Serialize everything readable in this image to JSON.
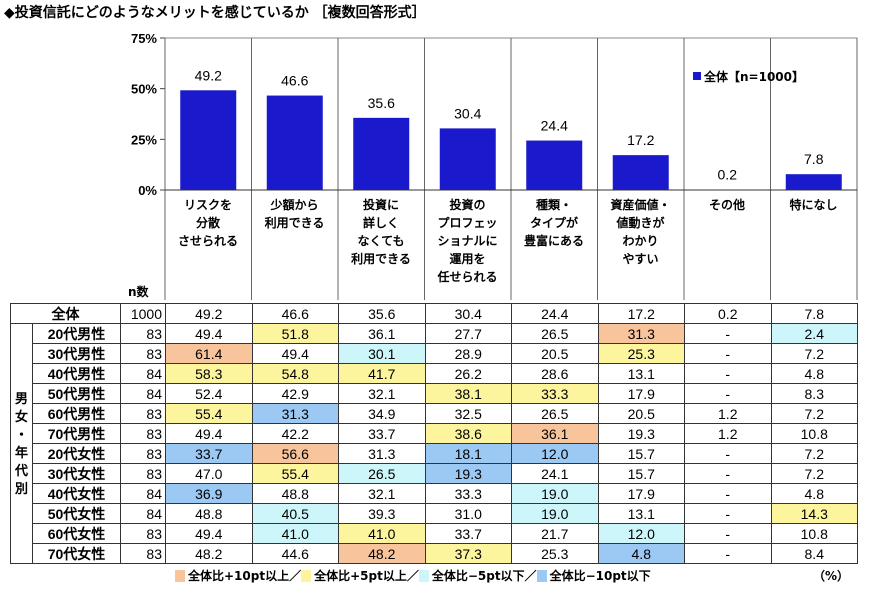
{
  "title": "◆投資信託にどのようなメリットを感じているか ［複数回答形式］",
  "colors": {
    "bar": "#1a1acc",
    "o": "#f8c49c",
    "y": "#fdf59e",
    "c": "#cdf6fa",
    "b": "#9cc8f4"
  },
  "chart_data": {
    "type": "bar",
    "title": "投資信託にどのようなメリットを感じているか",
    "categories": [
      "リスクを\n分散\nさせられる",
      "少額から\n利用できる",
      "投資に\n詳しく\nなくても\n利用できる",
      "投資の\nプロフェッ\nショナルに\n運用を\n任せられる",
      "種類・\nタイプが\n豊富にある",
      "資産価値・\n値動きが\nわかり\nやすい",
      "その他",
      "特になし"
    ],
    "values": [
      49.2,
      46.6,
      35.6,
      30.4,
      24.4,
      17.2,
      0.2,
      7.8
    ],
    "value_labels": [
      "49.2",
      "46.6",
      "35.6",
      "30.4",
      "24.4",
      "17.2",
      "0.2",
      "7.8"
    ],
    "yticks": [
      "75%",
      "50%",
      "25%",
      "0%"
    ],
    "ytick_values": [
      75,
      50,
      25,
      0
    ],
    "ylim": [
      0,
      75
    ],
    "legend": "全体【n=1000】",
    "legend_position": "top-right"
  },
  "table": {
    "n_header": "n数",
    "group_label": "男\n女\n・\n年\n代\n別",
    "total": {
      "label": "全体",
      "n": "1000",
      "values": [
        "49.2",
        "46.6",
        "35.6",
        "30.4",
        "24.4",
        "17.2",
        "0.2",
        "7.8"
      ]
    },
    "rows": [
      {
        "label": "20代男性",
        "n": "83",
        "values": [
          "49.4",
          "51.8",
          "36.1",
          "27.7",
          "26.5",
          "31.3",
          "-",
          "2.4"
        ],
        "hl": [
          "",
          "y",
          "",
          "",
          "",
          "o",
          "",
          "c"
        ]
      },
      {
        "label": "30代男性",
        "n": "83",
        "values": [
          "61.4",
          "49.4",
          "30.1",
          "28.9",
          "20.5",
          "25.3",
          "-",
          "7.2"
        ],
        "hl": [
          "o",
          "",
          "c",
          "",
          "",
          "y",
          "",
          ""
        ]
      },
      {
        "label": "40代男性",
        "n": "84",
        "values": [
          "58.3",
          "54.8",
          "41.7",
          "26.2",
          "28.6",
          "13.1",
          "-",
          "4.8"
        ],
        "hl": [
          "y",
          "y",
          "y",
          "",
          "",
          "",
          "",
          ""
        ]
      },
      {
        "label": "50代男性",
        "n": "84",
        "values": [
          "52.4",
          "42.9",
          "32.1",
          "38.1",
          "33.3",
          "17.9",
          "-",
          "8.3"
        ],
        "hl": [
          "",
          "",
          "",
          "y",
          "y",
          "",
          "",
          ""
        ]
      },
      {
        "label": "60代男性",
        "n": "83",
        "values": [
          "55.4",
          "31.3",
          "34.9",
          "32.5",
          "26.5",
          "20.5",
          "1.2",
          "7.2"
        ],
        "hl": [
          "y",
          "b",
          "",
          "",
          "",
          "",
          "",
          ""
        ]
      },
      {
        "label": "70代男性",
        "n": "83",
        "values": [
          "49.4",
          "42.2",
          "33.7",
          "38.6",
          "36.1",
          "19.3",
          "1.2",
          "10.8"
        ],
        "hl": [
          "",
          "",
          "",
          "y",
          "o",
          "",
          "",
          ""
        ]
      },
      {
        "label": "20代女性",
        "n": "83",
        "values": [
          "33.7",
          "56.6",
          "31.3",
          "18.1",
          "12.0",
          "15.7",
          "-",
          "7.2"
        ],
        "hl": [
          "b",
          "o",
          "",
          "b",
          "b",
          "",
          "",
          ""
        ]
      },
      {
        "label": "30代女性",
        "n": "83",
        "values": [
          "47.0",
          "55.4",
          "26.5",
          "19.3",
          "24.1",
          "15.7",
          "-",
          "7.2"
        ],
        "hl": [
          "",
          "y",
          "c",
          "b",
          "",
          "",
          "",
          ""
        ]
      },
      {
        "label": "40代女性",
        "n": "84",
        "values": [
          "36.9",
          "48.8",
          "32.1",
          "33.3",
          "19.0",
          "17.9",
          "-",
          "4.8"
        ],
        "hl": [
          "b",
          "",
          "",
          "",
          "c",
          "",
          "",
          ""
        ]
      },
      {
        "label": "50代女性",
        "n": "84",
        "values": [
          "48.8",
          "40.5",
          "39.3",
          "31.0",
          "19.0",
          "13.1",
          "-",
          "14.3"
        ],
        "hl": [
          "",
          "c",
          "",
          "",
          "c",
          "",
          "",
          "y"
        ]
      },
      {
        "label": "60代女性",
        "n": "83",
        "values": [
          "49.4",
          "41.0",
          "41.0",
          "33.7",
          "21.7",
          "12.0",
          "-",
          "10.8"
        ],
        "hl": [
          "",
          "c",
          "y",
          "",
          "",
          "c",
          "",
          ""
        ]
      },
      {
        "label": "70代女性",
        "n": "83",
        "values": [
          "48.2",
          "44.6",
          "48.2",
          "37.3",
          "25.3",
          "4.8",
          "-",
          "8.4"
        ],
        "hl": [
          "",
          "",
          "o",
          "y",
          "",
          "b",
          "",
          ""
        ]
      }
    ]
  },
  "legend": [
    {
      "key": "o",
      "label": "全体比+10pt以上／"
    },
    {
      "key": "y",
      "label": "全体比+5pt以上／"
    },
    {
      "key": "c",
      "label": "全体比−5pt以下／"
    },
    {
      "key": "b",
      "label": "全体比−10pt以下"
    }
  ],
  "unit": "（%）"
}
